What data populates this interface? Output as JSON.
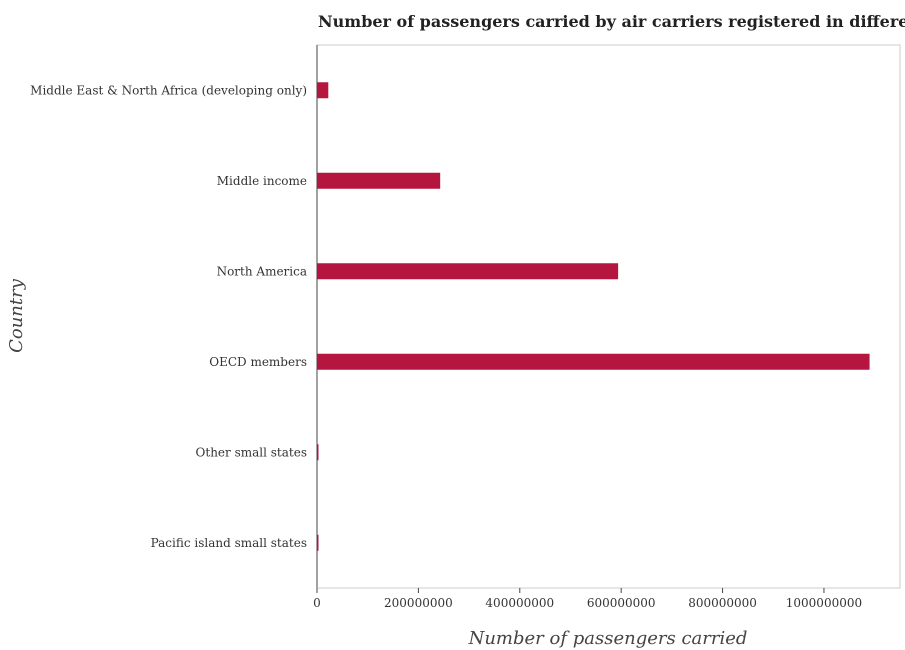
{
  "chart_data": {
    "type": "bar",
    "orientation": "horizontal",
    "title": "Number of passengers carried by air carriers registered in different countries",
    "xlabel": "Number of passengers carried",
    "ylabel": "Country",
    "categories": [
      "Middle East & North Africa (developing only)",
      "Middle income",
      "North America",
      "OECD members",
      "Other small states",
      "Pacific island small states"
    ],
    "values": [
      22300000,
      243000000,
      594000000,
      1090000000,
      2300000,
      300000
    ],
    "xlim": [
      0,
      1150000000
    ],
    "xticks": [
      0,
      200000000,
      400000000,
      600000000,
      800000000,
      1000000000
    ],
    "xtick_labels": [
      "0",
      "200000000",
      "400000000",
      "600000000",
      "800000000",
      "1000000000"
    ],
    "bar_color": "#b5163f",
    "grid": false,
    "legend": "none"
  }
}
